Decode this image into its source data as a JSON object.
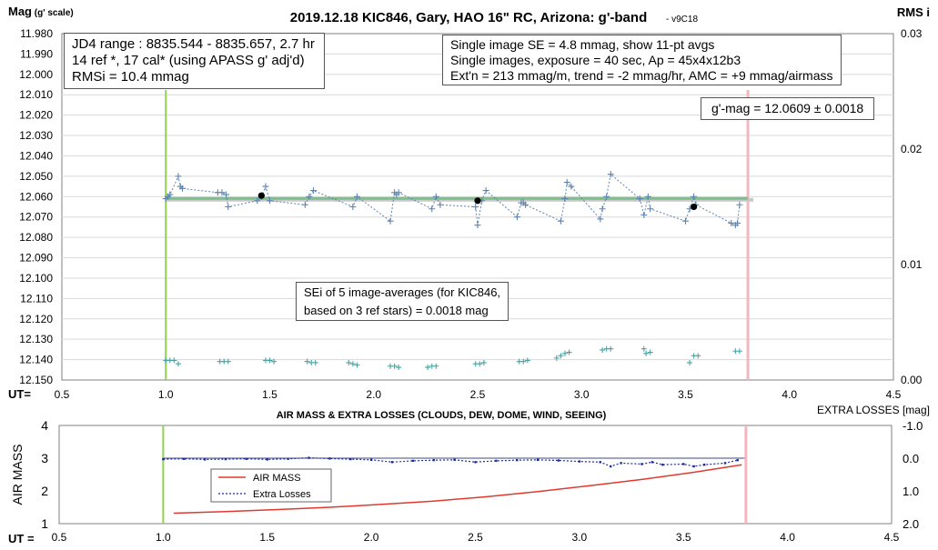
{
  "chart_data": [
    {
      "type": "scatter",
      "title": "2019.12.18 KIC846, Gary, HAO 16\" RC, Arizona: g'-band",
      "version": "v9C18",
      "ylabel": "Mag",
      "ylabel_suffix": "(g' scale)",
      "y2label": "RMS i",
      "xlabel": "UT=",
      "xlim": [
        0.5,
        4.5
      ],
      "ylim": [
        11.98,
        12.15
      ],
      "y_reversed": true,
      "y2lim": [
        0.0,
        0.03
      ],
      "xticks": [
        "0.5",
        "1.0",
        "1.5",
        "2.0",
        "2.5",
        "3.0",
        "3.5",
        "4.0",
        "4.5"
      ],
      "yticks": [
        "11.980",
        "11.990",
        "12.000",
        "12.010",
        "12.020",
        "12.030",
        "12.040",
        "12.050",
        "12.060",
        "12.070",
        "12.080",
        "12.090",
        "12.100",
        "12.110",
        "12.120",
        "12.130",
        "12.140",
        "12.150"
      ],
      "y2ticks": [
        "0.03",
        "0.02",
        "0.01",
        "0.00"
      ],
      "grid": true,
      "markers": {
        "ut_start": 1.0,
        "ut_end": 3.8,
        "start_color": "#92d050",
        "end_color": "#f4b6bf"
      },
      "fit_line": {
        "x": [
          1.0,
          3.8
        ],
        "y": 12.0609
      },
      "series": [
        {
          "kind": "single_images",
          "color": "#5b84b1",
          "x": [
            1.0,
            1.01,
            1.02,
            1.06,
            1.07,
            1.08,
            1.25,
            1.27,
            1.29,
            1.3,
            1.44,
            1.46,
            1.48,
            1.5,
            1.67,
            1.69,
            1.71,
            1.9,
            1.92,
            2.08,
            2.1,
            2.11,
            2.12,
            2.28,
            2.3,
            2.32,
            2.49,
            2.5,
            2.52,
            2.54,
            2.69,
            2.71,
            2.72,
            2.73,
            2.9,
            2.92,
            2.93,
            2.95,
            3.09,
            3.1,
            3.12,
            3.14,
            3.28,
            3.3,
            3.32,
            3.33,
            3.5,
            3.52,
            3.54,
            3.55,
            3.72,
            3.74,
            3.75,
            3.76
          ],
          "y": [
            12.061,
            12.06,
            12.059,
            12.05,
            12.055,
            12.056,
            12.058,
            12.058,
            12.059,
            12.065,
            12.062,
            12.06,
            12.055,
            12.062,
            12.064,
            12.06,
            12.057,
            12.065,
            12.06,
            12.072,
            12.058,
            12.059,
            12.058,
            12.066,
            12.06,
            12.064,
            12.065,
            12.074,
            12.062,
            12.057,
            12.07,
            12.063,
            12.063,
            12.064,
            12.072,
            12.061,
            12.053,
            12.055,
            12.071,
            12.066,
            12.06,
            12.049,
            12.061,
            12.069,
            12.06,
            12.066,
            12.072,
            12.066,
            12.06,
            12.064,
            12.073,
            12.074,
            12.073,
            12.064
          ]
        },
        {
          "kind": "averages",
          "color": "#000000",
          "x": [
            1.46,
            2.5,
            3.54
          ],
          "y": [
            12.0595,
            12.062,
            12.065
          ]
        },
        {
          "kind": "rms_i",
          "axis": "right",
          "color": "#4aa3a3",
          "x": [
            1.0,
            1.02,
            1.04,
            1.06,
            1.26,
            1.28,
            1.3,
            1.48,
            1.5,
            1.52,
            1.68,
            1.7,
            1.72,
            1.88,
            1.9,
            1.92,
            2.08,
            2.1,
            2.12,
            2.26,
            2.28,
            2.3,
            2.49,
            2.51,
            2.53,
            2.7,
            2.72,
            2.74,
            2.88,
            2.9,
            2.92,
            2.94,
            3.1,
            3.12,
            3.14,
            3.3,
            3.31,
            3.33,
            3.52,
            3.54,
            3.56,
            3.74,
            3.76
          ],
          "y": [
            0.0017,
            0.0017,
            0.0017,
            0.0014,
            0.0016,
            0.0016,
            0.0016,
            0.0017,
            0.0017,
            0.0016,
            0.0016,
            0.0015,
            0.0015,
            0.0015,
            0.0014,
            0.0013,
            0.0012,
            0.0012,
            0.0011,
            0.0011,
            0.0012,
            0.0012,
            0.0014,
            0.0014,
            0.0015,
            0.0016,
            0.0016,
            0.0017,
            0.0019,
            0.0021,
            0.0023,
            0.0024,
            0.0026,
            0.0027,
            0.0027,
            0.0027,
            0.0023,
            0.0024,
            0.0015,
            0.0021,
            0.0021,
            0.0025,
            0.0025
          ]
        }
      ]
    },
    {
      "type": "line",
      "title": "AIR MASS & EXTRA LOSSES (CLOUDS, DEW, DOME, WIND, SEEING)",
      "ylabel": "AIR MASS",
      "y2label": "EXTRA LOSSES [mag]",
      "xlabel": "UT =",
      "xlim": [
        0.5,
        4.5
      ],
      "ylim": [
        1,
        4
      ],
      "y2lim": [
        -1.0,
        2.0
      ],
      "y2_reversed": true,
      "xticks": [
        "0.5",
        "1.0",
        "1.5",
        "2.0",
        "2.5",
        "3.0",
        "3.5",
        "4.0",
        "4.5"
      ],
      "yticks": [
        "4",
        "3",
        "2",
        "1"
      ],
      "y2ticks": [
        "-1.0",
        "0.0",
        "1.0",
        "2.0"
      ],
      "legend": {
        "position": "inside-left",
        "items": [
          "AIR MASS",
          "Extra Losses"
        ]
      },
      "markers": {
        "ut_start": 1.0,
        "ut_end": 3.8,
        "start_color": "#92d050",
        "end_color": "#f4b6bf"
      },
      "series": [
        {
          "name": "AIR MASS",
          "color": "#e03a2e",
          "x": [
            1.05,
            1.3,
            1.55,
            1.8,
            2.05,
            2.3,
            2.55,
            2.8,
            3.05,
            3.3,
            3.55,
            3.78
          ],
          "y": [
            1.32,
            1.37,
            1.43,
            1.5,
            1.59,
            1.69,
            1.82,
            1.98,
            2.16,
            2.35,
            2.57,
            2.8
          ]
        },
        {
          "name": "Extra Losses",
          "color": "#1f2b9e",
          "x": [
            1.0,
            1.1,
            1.2,
            1.3,
            1.4,
            1.5,
            1.6,
            1.7,
            1.8,
            1.9,
            2.0,
            2.1,
            2.2,
            2.3,
            2.4,
            2.5,
            2.6,
            2.7,
            2.8,
            2.9,
            3.0,
            3.1,
            3.15,
            3.2,
            3.3,
            3.35,
            3.4,
            3.5,
            3.55,
            3.6,
            3.7,
            3.76
          ],
          "y": [
            0.03,
            0.02,
            0.04,
            0.03,
            0.02,
            0.04,
            0.02,
            -0.01,
            0.01,
            0.03,
            0.05,
            0.12,
            0.08,
            0.06,
            0.05,
            0.12,
            0.08,
            0.06,
            0.05,
            0.07,
            0.1,
            0.12,
            0.25,
            0.15,
            0.18,
            0.12,
            0.2,
            0.18,
            0.25,
            0.2,
            0.15,
            0.06
          ]
        }
      ]
    }
  ],
  "info_boxes": {
    "jd": [
      "JD4 range : 8835.544 - 8835.657,  2.7  hr",
      "14 ref *, 17 cal* (using APASS g' adj'd)",
      "RMSi = 10.4 mmag"
    ],
    "se": [
      "Single image SE = 4.8 mmag, show  11-pt avgs",
      "Single images, exposure = 40 sec, Ap = 45x4x12b3",
      "Ext'n = 213 mmag/m, trend =  -2 mmag/hr, AMC = +9 mmag/airmass"
    ],
    "gmag": "g'-mag = 12.0609 ± 0.0018",
    "sei": [
      "SEi of 5 image-averages (for KIC846,",
      "based on 3 ref stars) = 0.0018 mag"
    ]
  },
  "colors": {
    "plot_border": "#808080",
    "grid": "#d9d9d9",
    "fit_line": "#7bbf8a",
    "fit_line_shadow": "#c9c9c9"
  }
}
